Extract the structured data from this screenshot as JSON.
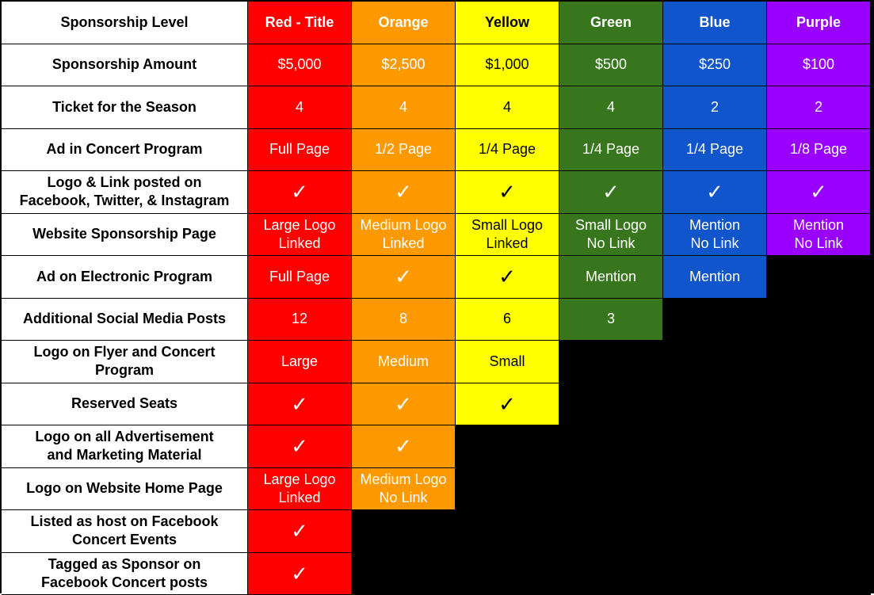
{
  "columns": [
    "Red - Title",
    "Orange",
    "Yellow",
    "Green",
    "Blue",
    "Purple"
  ],
  "column_keys": [
    "red",
    "orange",
    "yellow",
    "green",
    "blue",
    "purple"
  ],
  "colors": {
    "red": "#ff0000",
    "orange": "#ff9900",
    "yellow": "#ffff00",
    "green": "#38761d",
    "blue": "#1155cc",
    "purple": "#9900ff",
    "empty": "#000000"
  },
  "header_label": "Sponsorship Level",
  "check_symbol": "✓",
  "rows": [
    {
      "label": "Sponsorship Amount",
      "values": [
        "$5,000",
        "$2,500",
        "$1,000",
        "$500",
        "$250",
        "$100"
      ]
    },
    {
      "label": "Ticket for the Season",
      "values": [
        "4",
        "4",
        "4",
        "4",
        "2",
        "2"
      ]
    },
    {
      "label": "Ad in Concert Program",
      "values": [
        "Full Page",
        "1/2 Page",
        "1/4 Page",
        "1/4 Page",
        "1/4 Page",
        "1/8 Page"
      ]
    },
    {
      "label": "Logo & Link posted on\nFacebook, Twitter, & Instagram",
      "values": [
        "✓",
        "✓",
        "✓",
        "✓",
        "✓",
        "✓"
      ]
    },
    {
      "label": "Website Sponsorship Page",
      "values": [
        "Large Logo\nLinked",
        "Medium Logo\nLinked",
        "Small Logo\nLinked",
        "Small Logo\nNo Link",
        "Mention\nNo Link",
        "Mention\nNo Link"
      ]
    },
    {
      "label": "Ad on Electronic Program",
      "values": [
        "Full Page",
        "✓",
        "✓",
        "Mention",
        "Mention",
        null
      ]
    },
    {
      "label": "Additional Social Media Posts",
      "values": [
        "12",
        "8",
        "6",
        "3",
        null,
        null
      ]
    },
    {
      "label": "Logo on Flyer and Concert\nProgram",
      "values": [
        "Large",
        "Medium",
        "Small",
        null,
        null,
        null
      ]
    },
    {
      "label": "Reserved Seats",
      "values": [
        "✓",
        "✓",
        "✓",
        null,
        null,
        null
      ]
    },
    {
      "label": "Logo on all Advertisement\nand Marketing Material",
      "values": [
        "✓",
        "✓",
        null,
        null,
        null,
        null
      ]
    },
    {
      "label": "Logo on Website Home Page",
      "values": [
        "Large Logo\nLinked",
        "Medium Logo\nNo Link",
        null,
        null,
        null,
        null
      ]
    },
    {
      "label": "Listed as host on Facebook\nConcert Events",
      "values": [
        "✓",
        null,
        null,
        null,
        null,
        null
      ]
    },
    {
      "label": "Tagged as Sponsor on\nFacebook Concert posts",
      "values": [
        "✓",
        null,
        null,
        null,
        null,
        null
      ]
    }
  ]
}
